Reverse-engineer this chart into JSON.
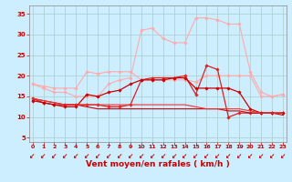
{
  "x": [
    0,
    1,
    2,
    3,
    4,
    5,
    6,
    7,
    8,
    9,
    10,
    11,
    12,
    13,
    14,
    15,
    16,
    17,
    18,
    19,
    20,
    21,
    22,
    23
  ],
  "series": [
    {
      "color": "#ffaaaa",
      "linewidth": 0.8,
      "marker": "D",
      "markersize": 1.8,
      "values": [
        18,
        17.5,
        17,
        17,
        17,
        21,
        20.5,
        21,
        21,
        21,
        19,
        19,
        19,
        19,
        19,
        18.5,
        20,
        20,
        20,
        20,
        20,
        15,
        15,
        15.5
      ]
    },
    {
      "color": "#ffaaaa",
      "linewidth": 0.8,
      "marker": "D",
      "markersize": 1.8,
      "values": [
        18,
        17,
        16,
        16,
        15,
        15,
        15,
        18,
        19,
        19.5,
        31,
        31.5,
        29,
        28,
        28,
        34,
        34,
        33.5,
        32.5,
        32.5,
        21,
        16,
        15,
        15.5
      ]
    },
    {
      "color": "#dd2222",
      "linewidth": 0.9,
      "marker": "D",
      "markersize": 1.8,
      "values": [
        14.5,
        13.5,
        13,
        13,
        13,
        13,
        13,
        12.5,
        12.5,
        13,
        19,
        19.5,
        19.5,
        19.5,
        20,
        15.5,
        22.5,
        21.5,
        10,
        11,
        11,
        11,
        11,
        11
      ]
    },
    {
      "color": "#cc0000",
      "linewidth": 0.9,
      "marker": "D",
      "markersize": 1.8,
      "values": [
        14,
        13.5,
        13,
        12.5,
        12.5,
        15.5,
        15,
        16,
        16.5,
        18,
        19,
        19,
        19,
        19.5,
        19.5,
        17,
        17,
        17,
        17,
        16,
        12,
        11,
        11,
        11
      ]
    },
    {
      "color": "#cc0000",
      "linewidth": 0.8,
      "marker": null,
      "markersize": 0,
      "values": [
        14.5,
        14,
        13.5,
        13,
        13,
        12.5,
        12,
        12,
        12,
        12,
        12,
        12,
        12,
        12,
        12,
        12,
        12,
        12,
        11.5,
        11.5,
        11,
        11,
        11,
        10.5
      ]
    },
    {
      "color": "#ee3333",
      "linewidth": 0.8,
      "marker": null,
      "markersize": 0,
      "values": [
        14.5,
        14,
        13.5,
        13,
        13,
        13,
        13,
        13,
        13,
        13,
        13,
        13,
        13,
        13,
        13,
        12.5,
        12,
        12,
        12,
        12,
        11.5,
        11,
        11,
        11
      ]
    }
  ],
  "xlim": [
    -0.3,
    23.3
  ],
  "ylim": [
    4,
    37
  ],
  "yticks": [
    5,
    10,
    15,
    20,
    25,
    30,
    35
  ],
  "xticks": [
    0,
    1,
    2,
    3,
    4,
    5,
    6,
    7,
    8,
    9,
    10,
    11,
    12,
    13,
    14,
    15,
    16,
    17,
    18,
    19,
    20,
    21,
    22,
    23
  ],
  "xlabel": "Vent moyen/en rafales ( km/h )",
  "xlabel_fontsize": 6.5,
  "bg_color": "#cceeff",
  "grid_color": "#aacccc",
  "tick_color": "#cc0000",
  "label_color": "#cc0000",
  "arrow_color": "#cc0000",
  "spine_color": "#888888"
}
